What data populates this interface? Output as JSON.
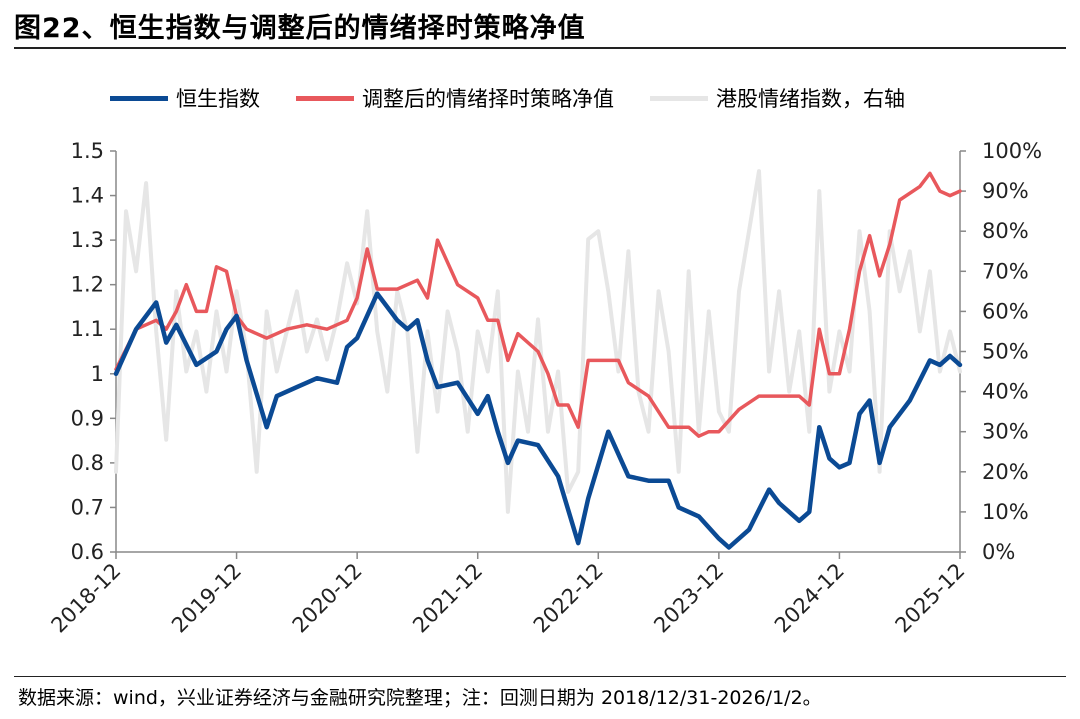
{
  "title": "图22、恒生指数与调整后的情绪择时策略净值",
  "footer": "数据来源：wind，兴业证券经济与金融研究院整理；注：回测日期为 2018/12/31-2026/1/2。",
  "chart_data": {
    "type": "line",
    "x_ticks": [
      "2018-12",
      "2019-12",
      "2020-12",
      "2021-12",
      "2022-12",
      "2023-12",
      "2024-12",
      "2025-12"
    ],
    "y_left": {
      "ticks": [
        "0.6",
        "0.7",
        "0.8",
        "0.9",
        "1",
        "1.1",
        "1.2",
        "1.3",
        "1.4",
        "1.5"
      ],
      "ylim": [
        0.6,
        1.5
      ]
    },
    "y_right": {
      "ticks": [
        "0%",
        "10%",
        "20%",
        "30%",
        "40%",
        "50%",
        "60%",
        "70%",
        "80%",
        "90%",
        "100%"
      ],
      "ylim": [
        0,
        1.0
      ]
    },
    "series": [
      {
        "name": "恒生指数",
        "axis": "left",
        "color": "#0b4a94",
        "points": [
          [
            "2018-12",
            1.0
          ],
          [
            "2019-02",
            1.1
          ],
          [
            "2019-04",
            1.16
          ],
          [
            "2019-05",
            1.07
          ],
          [
            "2019-06",
            1.11
          ],
          [
            "2019-08",
            1.02
          ],
          [
            "2019-10",
            1.05
          ],
          [
            "2019-11",
            1.1
          ],
          [
            "2019-12",
            1.13
          ],
          [
            "2020-01",
            1.03
          ],
          [
            "2020-03",
            0.88
          ],
          [
            "2020-04",
            0.95
          ],
          [
            "2020-06",
            0.97
          ],
          [
            "2020-08",
            0.99
          ],
          [
            "2020-10",
            0.98
          ],
          [
            "2020-11",
            1.06
          ],
          [
            "2020-12",
            1.08
          ],
          [
            "2021-02",
            1.18
          ],
          [
            "2021-04",
            1.12
          ],
          [
            "2021-05",
            1.1
          ],
          [
            "2021-06",
            1.12
          ],
          [
            "2021-07",
            1.03
          ],
          [
            "2021-08",
            0.97
          ],
          [
            "2021-10",
            0.98
          ],
          [
            "2021-12",
            0.91
          ],
          [
            "2022-01",
            0.95
          ],
          [
            "2022-02",
            0.87
          ],
          [
            "2022-03",
            0.8
          ],
          [
            "2022-04",
            0.85
          ],
          [
            "2022-06",
            0.84
          ],
          [
            "2022-08",
            0.77
          ],
          [
            "2022-10",
            0.62
          ],
          [
            "2022-11",
            0.72
          ],
          [
            "2023-01",
            0.87
          ],
          [
            "2023-03",
            0.77
          ],
          [
            "2023-05",
            0.76
          ],
          [
            "2023-07",
            0.76
          ],
          [
            "2023-08",
            0.7
          ],
          [
            "2023-10",
            0.68
          ],
          [
            "2023-12",
            0.63
          ],
          [
            "2024-01",
            0.61
          ],
          [
            "2024-03",
            0.65
          ],
          [
            "2024-05",
            0.74
          ],
          [
            "2024-06",
            0.71
          ],
          [
            "2024-08",
            0.67
          ],
          [
            "2024-09",
            0.69
          ],
          [
            "2024-10",
            0.88
          ],
          [
            "2024-11",
            0.81
          ],
          [
            "2024-12",
            0.79
          ],
          [
            "2025-01",
            0.8
          ],
          [
            "2025-02",
            0.91
          ],
          [
            "2025-03",
            0.94
          ],
          [
            "2025-04",
            0.8
          ],
          [
            "2025-05",
            0.88
          ],
          [
            "2025-07",
            0.94
          ],
          [
            "2025-09",
            1.03
          ],
          [
            "2025-10",
            1.02
          ],
          [
            "2025-11",
            1.04
          ],
          [
            "2025-12",
            1.02
          ]
        ]
      },
      {
        "name": "调整后的情绪择时策略净值",
        "axis": "left",
        "color": "#e8585c",
        "points": [
          [
            "2018-12",
            1.01
          ],
          [
            "2019-02",
            1.1
          ],
          [
            "2019-04",
            1.12
          ],
          [
            "2019-05",
            1.1
          ],
          [
            "2019-06",
            1.14
          ],
          [
            "2019-07",
            1.2
          ],
          [
            "2019-08",
            1.14
          ],
          [
            "2019-09",
            1.14
          ],
          [
            "2019-10",
            1.24
          ],
          [
            "2019-11",
            1.23
          ],
          [
            "2019-12",
            1.13
          ],
          [
            "2020-01",
            1.1
          ],
          [
            "2020-03",
            1.08
          ],
          [
            "2020-05",
            1.1
          ],
          [
            "2020-07",
            1.11
          ],
          [
            "2020-09",
            1.1
          ],
          [
            "2020-11",
            1.12
          ],
          [
            "2020-12",
            1.17
          ],
          [
            "2021-01",
            1.28
          ],
          [
            "2021-02",
            1.19
          ],
          [
            "2021-04",
            1.19
          ],
          [
            "2021-06",
            1.21
          ],
          [
            "2021-07",
            1.17
          ],
          [
            "2021-08",
            1.3
          ],
          [
            "2021-10",
            1.2
          ],
          [
            "2021-12",
            1.17
          ],
          [
            "2022-01",
            1.12
          ],
          [
            "2022-02",
            1.12
          ],
          [
            "2022-03",
            1.03
          ],
          [
            "2022-04",
            1.09
          ],
          [
            "2022-06",
            1.05
          ],
          [
            "2022-07",
            1.0
          ],
          [
            "2022-08",
            0.93
          ],
          [
            "2022-09",
            0.93
          ],
          [
            "2022-10",
            0.88
          ],
          [
            "2022-11",
            1.03
          ],
          [
            "2022-12",
            1.03
          ],
          [
            "2023-02",
            1.03
          ],
          [
            "2023-03",
            0.98
          ],
          [
            "2023-05",
            0.95
          ],
          [
            "2023-07",
            0.88
          ],
          [
            "2023-09",
            0.88
          ],
          [
            "2023-10",
            0.86
          ],
          [
            "2023-11",
            0.87
          ],
          [
            "2023-12",
            0.87
          ],
          [
            "2024-02",
            0.92
          ],
          [
            "2024-04",
            0.95
          ],
          [
            "2024-06",
            0.95
          ],
          [
            "2024-08",
            0.95
          ],
          [
            "2024-09",
            0.93
          ],
          [
            "2024-10",
            1.1
          ],
          [
            "2024-11",
            1.0
          ],
          [
            "2024-12",
            1.0
          ],
          [
            "2025-01",
            1.1
          ],
          [
            "2025-02",
            1.23
          ],
          [
            "2025-03",
            1.31
          ],
          [
            "2025-04",
            1.22
          ],
          [
            "2025-05",
            1.29
          ],
          [
            "2025-06",
            1.39
          ],
          [
            "2025-08",
            1.42
          ],
          [
            "2025-09",
            1.45
          ],
          [
            "2025-10",
            1.41
          ],
          [
            "2025-11",
            1.4
          ],
          [
            "2025-12",
            1.41
          ]
        ]
      },
      {
        "name": "港股情绪指数，右轴",
        "axis": "right",
        "color": "#e6e6e6",
        "points": [
          [
            "2018-12",
            0.2
          ],
          [
            "2019-01",
            0.85
          ],
          [
            "2019-02",
            0.7
          ],
          [
            "2019-03",
            0.92
          ],
          [
            "2019-04",
            0.55
          ],
          [
            "2019-05",
            0.28
          ],
          [
            "2019-06",
            0.65
          ],
          [
            "2019-07",
            0.45
          ],
          [
            "2019-08",
            0.55
          ],
          [
            "2019-09",
            0.4
          ],
          [
            "2019-10",
            0.6
          ],
          [
            "2019-11",
            0.45
          ],
          [
            "2019-12",
            0.65
          ],
          [
            "2020-01",
            0.5
          ],
          [
            "2020-02",
            0.2
          ],
          [
            "2020-03",
            0.6
          ],
          [
            "2020-04",
            0.45
          ],
          [
            "2020-05",
            0.55
          ],
          [
            "2020-06",
            0.65
          ],
          [
            "2020-07",
            0.5
          ],
          [
            "2020-08",
            0.58
          ],
          [
            "2020-09",
            0.48
          ],
          [
            "2020-10",
            0.58
          ],
          [
            "2020-11",
            0.72
          ],
          [
            "2020-12",
            0.62
          ],
          [
            "2021-01",
            0.85
          ],
          [
            "2021-02",
            0.55
          ],
          [
            "2021-03",
            0.4
          ],
          [
            "2021-04",
            0.65
          ],
          [
            "2021-05",
            0.55
          ],
          [
            "2021-06",
            0.25
          ],
          [
            "2021-07",
            0.55
          ],
          [
            "2021-08",
            0.35
          ],
          [
            "2021-09",
            0.6
          ],
          [
            "2021-10",
            0.5
          ],
          [
            "2021-11",
            0.3
          ],
          [
            "2021-12",
            0.55
          ],
          [
            "2022-01",
            0.45
          ],
          [
            "2022-02",
            0.65
          ],
          [
            "2022-03",
            0.1
          ],
          [
            "2022-04",
            0.45
          ],
          [
            "2022-05",
            0.3
          ],
          [
            "2022-06",
            0.58
          ],
          [
            "2022-07",
            0.3
          ],
          [
            "2022-08",
            0.45
          ],
          [
            "2022-09",
            0.15
          ],
          [
            "2022-10",
            0.2
          ],
          [
            "2022-11",
            0.78
          ],
          [
            "2022-12",
            0.8
          ],
          [
            "2023-01",
            0.65
          ],
          [
            "2023-02",
            0.45
          ],
          [
            "2023-03",
            0.75
          ],
          [
            "2023-04",
            0.4
          ],
          [
            "2023-05",
            0.3
          ],
          [
            "2023-06",
            0.65
          ],
          [
            "2023-07",
            0.5
          ],
          [
            "2023-08",
            0.2
          ],
          [
            "2023-09",
            0.7
          ],
          [
            "2023-10",
            0.3
          ],
          [
            "2023-11",
            0.6
          ],
          [
            "2023-12",
            0.35
          ],
          [
            "2024-01",
            0.3
          ],
          [
            "2024-02",
            0.65
          ],
          [
            "2024-03",
            0.8
          ],
          [
            "2024-04",
            0.95
          ],
          [
            "2024-05",
            0.45
          ],
          [
            "2024-06",
            0.65
          ],
          [
            "2024-07",
            0.4
          ],
          [
            "2024-08",
            0.55
          ],
          [
            "2024-09",
            0.3
          ],
          [
            "2024-10",
            0.9
          ],
          [
            "2024-11",
            0.4
          ],
          [
            "2024-12",
            0.55
          ],
          [
            "2025-01",
            0.45
          ],
          [
            "2025-02",
            0.8
          ],
          [
            "2025-03",
            0.6
          ],
          [
            "2025-04",
            0.2
          ],
          [
            "2025-05",
            0.8
          ],
          [
            "2025-06",
            0.65
          ],
          [
            "2025-07",
            0.75
          ],
          [
            "2025-08",
            0.55
          ],
          [
            "2025-09",
            0.7
          ],
          [
            "2025-10",
            0.45
          ],
          [
            "2025-11",
            0.55
          ],
          [
            "2025-12",
            0.45
          ]
        ]
      }
    ]
  }
}
